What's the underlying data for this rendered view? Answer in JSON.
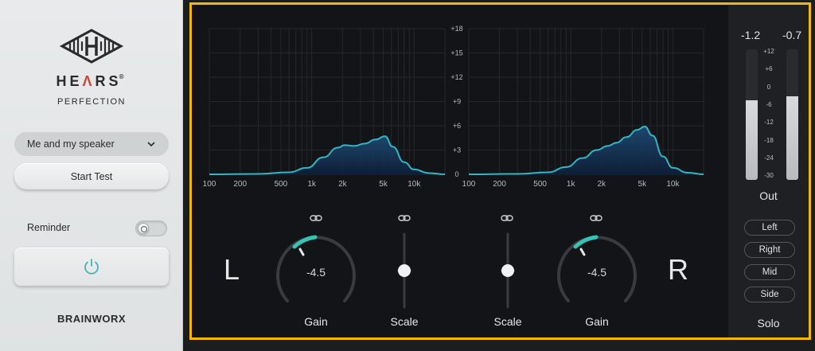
{
  "sidebar": {
    "brand_name_part1": "HE",
    "brand_name_accent": "Λ",
    "brand_name_part2": "RS",
    "brand_reg": "®",
    "brand_subtitle": "PERFECTION",
    "profile_dropdown": {
      "selected": "Me and my speaker",
      "icon": "chevron-down-icon"
    },
    "start_test_label": "Start Test",
    "reminder_label": "Reminder",
    "reminder_enabled": false,
    "power_icon": "power-icon",
    "footer_brand": "BRAINWORX",
    "accent_color": "#d0423a"
  },
  "eq": {
    "db_ticks": [
      "+18",
      "+15",
      "+12",
      "+9",
      "+6",
      "+3",
      "0"
    ],
    "freq_ticks_left": [
      "100",
      "200",
      "500",
      "1k",
      "2k",
      "5k",
      "10k"
    ],
    "freq_ticks_right": [
      "100",
      "200",
      "500",
      "1k",
      "2k",
      "5k",
      "10k"
    ],
    "curve_color": "#35b4c4"
  },
  "controls": {
    "left_channel_letter": "L",
    "right_channel_letter": "R",
    "left_gain_value": "-4.5",
    "right_gain_value": "-4.5",
    "left_gain_label": "Gain",
    "left_scale_label": "Scale",
    "right_scale_label": "Scale",
    "right_gain_label": "Gain",
    "link_icon": "link-icon",
    "knob_accent": "#35c4b4"
  },
  "output": {
    "peak_left": "-1.2",
    "peak_right": "-0.7",
    "meter_ticks": [
      "+12",
      "+6",
      "0",
      "-6",
      "-12",
      "-18",
      "-24",
      "-30"
    ],
    "left_level_fraction": 0.61,
    "right_level_fraction": 0.64,
    "out_label": "Out",
    "solo_buttons": [
      "Left",
      "Right",
      "Mid",
      "Side"
    ],
    "solo_label": "Solo"
  }
}
